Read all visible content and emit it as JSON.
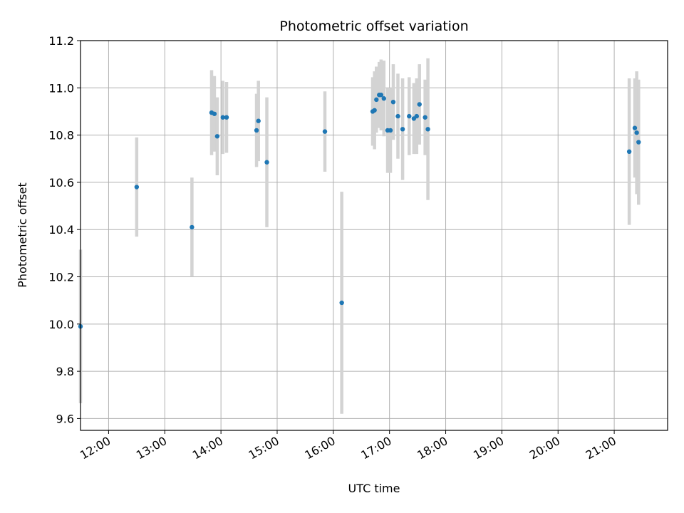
{
  "chart_data": {
    "type": "scatter",
    "title": "Photometric offset variation",
    "xlabel": "UTC time",
    "ylabel": "Photometric offset",
    "xlim": [
      "11:30",
      "21:57"
    ],
    "ylim": [
      9.55,
      11.2
    ],
    "x_ticks": [
      "12:00",
      "13:00",
      "14:00",
      "15:00",
      "16:00",
      "17:00",
      "18:00",
      "19:00",
      "20:00",
      "21:00"
    ],
    "y_ticks": [
      "9.6",
      "9.8",
      "10.0",
      "10.2",
      "10.4",
      "10.6",
      "10.8",
      "11.0",
      "11.2"
    ],
    "grid": true,
    "colors": {
      "point": "#1f77b4",
      "errorbar": "#d3d3d3",
      "grid": "#b0b0b0"
    },
    "series": [
      {
        "points": [
          {
            "x": "11:30",
            "y": 9.99,
            "err": 0.325
          },
          {
            "x": "12:30",
            "y": 10.58,
            "err": 0.21
          },
          {
            "x": "13:29",
            "y": 10.41,
            "err": 0.21
          },
          {
            "x": "13:50",
            "y": 10.895,
            "err": 0.18
          },
          {
            "x": "13:53",
            "y": 10.89,
            "err": 0.16
          },
          {
            "x": "13:56",
            "y": 10.795,
            "err": 0.165
          },
          {
            "x": "14:02",
            "y": 10.875,
            "err": 0.155
          },
          {
            "x": "14:06",
            "y": 10.875,
            "err": 0.15
          },
          {
            "x": "14:38",
            "y": 10.82,
            "err": 0.155
          },
          {
            "x": "14:40",
            "y": 10.86,
            "err": 0.17
          },
          {
            "x": "14:49",
            "y": 10.685,
            "err": 0.275
          },
          {
            "x": "15:51",
            "y": 10.815,
            "err": 0.17
          },
          {
            "x": "16:09",
            "y": 10.09,
            "err": 0.47
          },
          {
            "x": "16:42",
            "y": 10.9,
            "err": 0.145
          },
          {
            "x": "16:44",
            "y": 10.905,
            "err": 0.165
          },
          {
            "x": "16:46",
            "y": 10.95,
            "err": 0.14
          },
          {
            "x": "16:49",
            "y": 10.97,
            "err": 0.14
          },
          {
            "x": "16:51",
            "y": 10.97,
            "err": 0.15
          },
          {
            "x": "16:54",
            "y": 10.955,
            "err": 0.16
          },
          {
            "x": "16:58",
            "y": 10.82,
            "err": 0.18
          },
          {
            "x": "17:01",
            "y": 10.82,
            "err": 0.18
          },
          {
            "x": "17:04",
            "y": 10.94,
            "err": 0.16
          },
          {
            "x": "17:09",
            "y": 10.88,
            "err": 0.18
          },
          {
            "x": "17:14",
            "y": 10.825,
            "err": 0.215
          },
          {
            "x": "17:21",
            "y": 10.88,
            "err": 0.165
          },
          {
            "x": "17:26",
            "y": 10.87,
            "err": 0.15
          },
          {
            "x": "17:29",
            "y": 10.88,
            "err": 0.16
          },
          {
            "x": "17:32",
            "y": 10.93,
            "err": 0.17
          },
          {
            "x": "17:38",
            "y": 10.875,
            "err": 0.16
          },
          {
            "x": "17:41",
            "y": 10.825,
            "err": 0.3
          },
          {
            "x": "21:16",
            "y": 10.73,
            "err": 0.31
          },
          {
            "x": "21:22",
            "y": 10.83,
            "err": 0.21
          },
          {
            "x": "21:24",
            "y": 10.81,
            "err": 0.26
          },
          {
            "x": "21:26",
            "y": 10.77,
            "err": 0.265
          }
        ]
      }
    ]
  }
}
